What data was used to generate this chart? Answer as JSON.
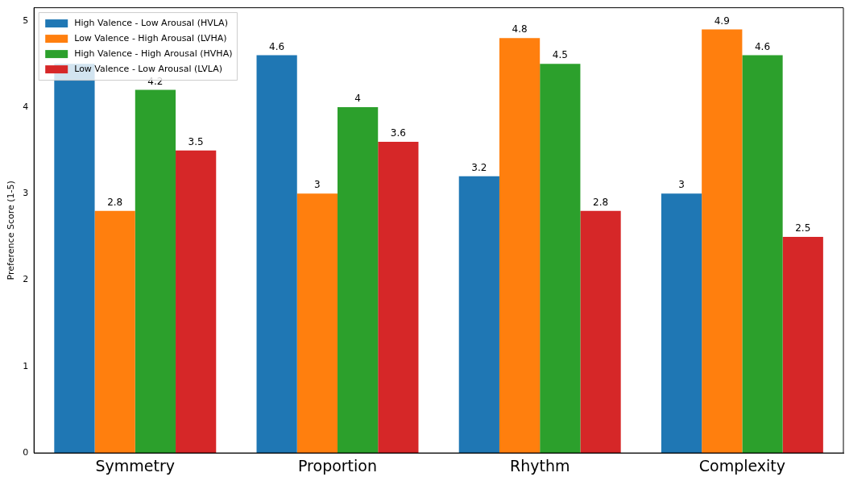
{
  "chart_data": {
    "type": "bar",
    "ylabel": "Preference Score (1-5)",
    "categories": [
      "Symmetry",
      "Proportion",
      "Rhythm",
      "Complexity"
    ],
    "series": [
      {
        "name": "High Valence - Low Arousal (HVLA)",
        "color": "#1f77b4",
        "values": [
          4.5,
          4.6,
          3.2,
          3
        ],
        "value_labels": [
          null,
          "4.6",
          "3.2",
          "3"
        ]
      },
      {
        "name": "Low Valence - High Arousal (LVHA)",
        "color": "#ff7f0e",
        "values": [
          2.8,
          3,
          4.8,
          4.9
        ],
        "value_labels": [
          "2.8",
          "3",
          "4.8",
          "4.9"
        ]
      },
      {
        "name": "High Valence - High Arousal (HVHA)",
        "color": "#2ca02c",
        "values": [
          4.2,
          4,
          4.5,
          4.6
        ],
        "value_labels": [
          "4.2",
          "4",
          "4.5",
          "4.6"
        ]
      },
      {
        "name": "Low Valence - Low Arousal (LVLA)",
        "color": "#d62728",
        "values": [
          3.5,
          3.6,
          2.8,
          2.5
        ],
        "value_labels": [
          "3.5",
          "3.6",
          "2.8",
          "2.5"
        ]
      }
    ],
    "ylim": [
      0,
      5.15
    ],
    "yticks": [
      0,
      1,
      2,
      3,
      4,
      5
    ],
    "grid": false,
    "legend": "top left"
  }
}
